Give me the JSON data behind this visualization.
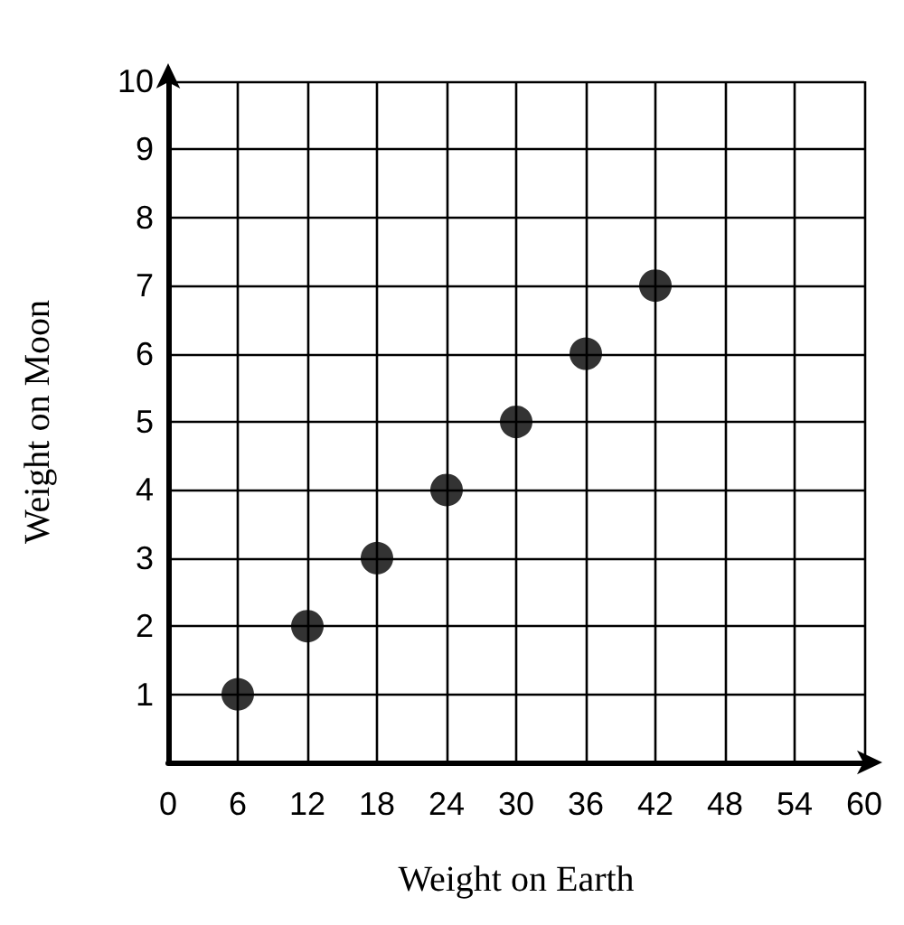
{
  "chart_data": {
    "type": "scatter",
    "xlabel": "Weight on Earth",
    "ylabel": "Weight on Moon",
    "x": [
      6,
      12,
      18,
      24,
      30,
      36,
      42
    ],
    "series": [
      {
        "color": "#000000",
        "values": [
          1,
          2,
          3,
          4,
          5,
          6,
          7
        ]
      }
    ],
    "xlim": [
      0,
      60
    ],
    "xticks": [
      0,
      6,
      12,
      18,
      24,
      30,
      36,
      42,
      48,
      54,
      60
    ],
    "ylim": [
      0,
      10
    ],
    "yticks": [
      {
        "value": 0,
        "label": null
      },
      1,
      2,
      3,
      4,
      5,
      6,
      7,
      8,
      9,
      10
    ],
    "grid": true,
    "marker": "circle"
  }
}
